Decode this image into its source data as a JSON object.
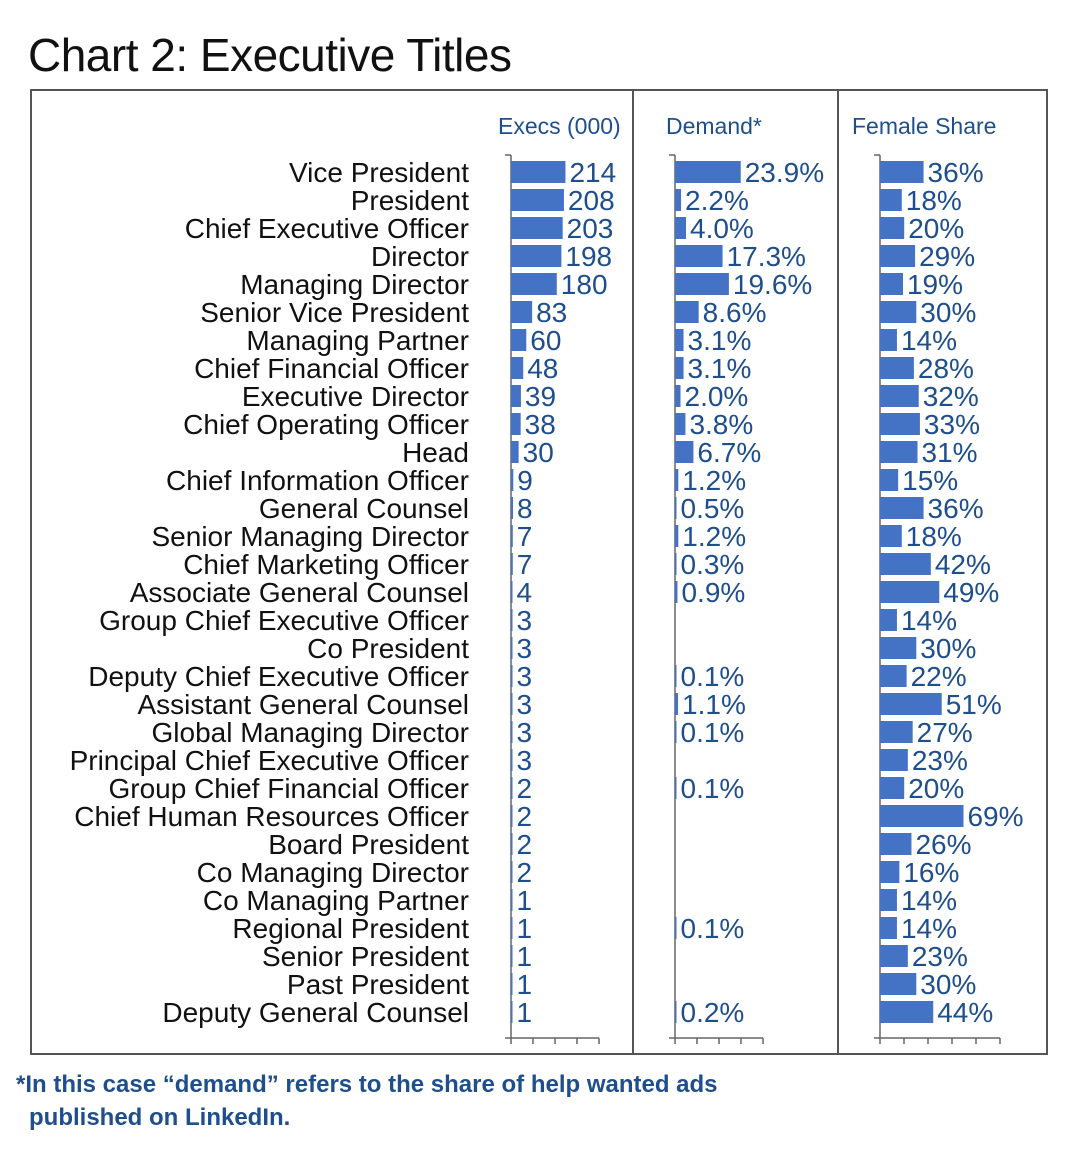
{
  "title": "Chart 2: Executive Titles",
  "footnote": {
    "line1": "*In this case “demand” refers to the share of help wanted ads",
    "line2": "published on LinkedIn."
  },
  "colors": {
    "bar": "#4472c4",
    "text_accent": "#1f4e8c",
    "frame": "#555555"
  },
  "chart_data": {
    "type": "bar",
    "orientation": "horizontal",
    "categories": [
      "Vice President",
      "President",
      "Chief Executive Officer",
      "Director",
      "Managing Director",
      "Senior Vice President",
      "Managing Partner",
      "Chief Financial Officer",
      "Executive Director",
      "Chief Operating Officer",
      "Head",
      "Chief Information Officer",
      "General Counsel",
      "Senior Managing Director",
      "Chief Marketing Officer",
      "Associate General Counsel",
      "Group Chief Executive Officer",
      "Co President",
      "Deputy Chief Executive Officer",
      "Assistant General Counsel",
      "Global Managing Director",
      "Principal Chief Executive Officer",
      "Group Chief Financial Officer",
      "Chief Human Resources Officer",
      "Board President",
      "Co Managing Director",
      "Co Managing Partner",
      "Regional President",
      "Senior President",
      "Past President",
      "Deputy General Counsel"
    ],
    "series": [
      {
        "name": "Execs (000)",
        "values": [
          214,
          208,
          203,
          198,
          180,
          83,
          60,
          48,
          39,
          38,
          30,
          9,
          8,
          7,
          7,
          4,
          3,
          3,
          3,
          3,
          3,
          3,
          2,
          2,
          2,
          2,
          1,
          1,
          1,
          1,
          1
        ],
        "labels": [
          "214",
          "208",
          "203",
          "198",
          "180",
          "83",
          "60",
          "48",
          "39",
          "38",
          "30",
          "9",
          "8",
          "7",
          "7",
          "4",
          "3",
          "3",
          "3",
          "3",
          "3",
          "3",
          "2",
          "2",
          "2",
          "2",
          "1",
          "1",
          "1",
          "1",
          "1"
        ],
        "xlim": [
          0,
          350
        ]
      },
      {
        "name": "Demand*",
        "values": [
          23.9,
          2.2,
          4.0,
          17.3,
          19.6,
          8.6,
          3.1,
          3.1,
          2.0,
          3.8,
          6.7,
          1.2,
          0.5,
          1.2,
          0.3,
          0.9,
          null,
          null,
          0.1,
          1.1,
          0.1,
          null,
          0.1,
          null,
          null,
          null,
          null,
          0.1,
          null,
          null,
          0.2
        ],
        "labels": [
          "23.9%",
          "2.2%",
          "4.0%",
          "17.3%",
          "19.6%",
          "8.6%",
          "3.1%",
          "3.1%",
          "2.0%",
          "3.8%",
          "6.7%",
          "1.2%",
          "0.5%",
          "1.2%",
          "0.3%",
          "0.9%",
          "",
          "",
          "0.1%",
          "1.1%",
          "0.1%",
          "",
          "0.1%",
          "",
          "",
          "",
          "",
          "0.1%",
          "",
          "",
          "0.2%"
        ],
        "xlim": [
          0,
          33
        ]
      },
      {
        "name": "Female Share",
        "values": [
          36,
          18,
          20,
          29,
          19,
          30,
          14,
          28,
          32,
          33,
          31,
          15,
          36,
          18,
          42,
          49,
          14,
          30,
          22,
          51,
          27,
          23,
          20,
          69,
          26,
          16,
          14,
          14,
          23,
          30,
          44
        ],
        "labels": [
          "36%",
          "18%",
          "20%",
          "29%",
          "19%",
          "30%",
          "14%",
          "28%",
          "32%",
          "33%",
          "31%",
          "15%",
          "36%",
          "18%",
          "42%",
          "49%",
          "14%",
          "30%",
          "22%",
          "51%",
          "27%",
          "23%",
          "20%",
          "69%",
          "26%",
          "16%",
          "14%",
          "14%",
          "23%",
          "30%",
          "44%"
        ],
        "xlim": [
          0,
          110
        ]
      }
    ]
  }
}
